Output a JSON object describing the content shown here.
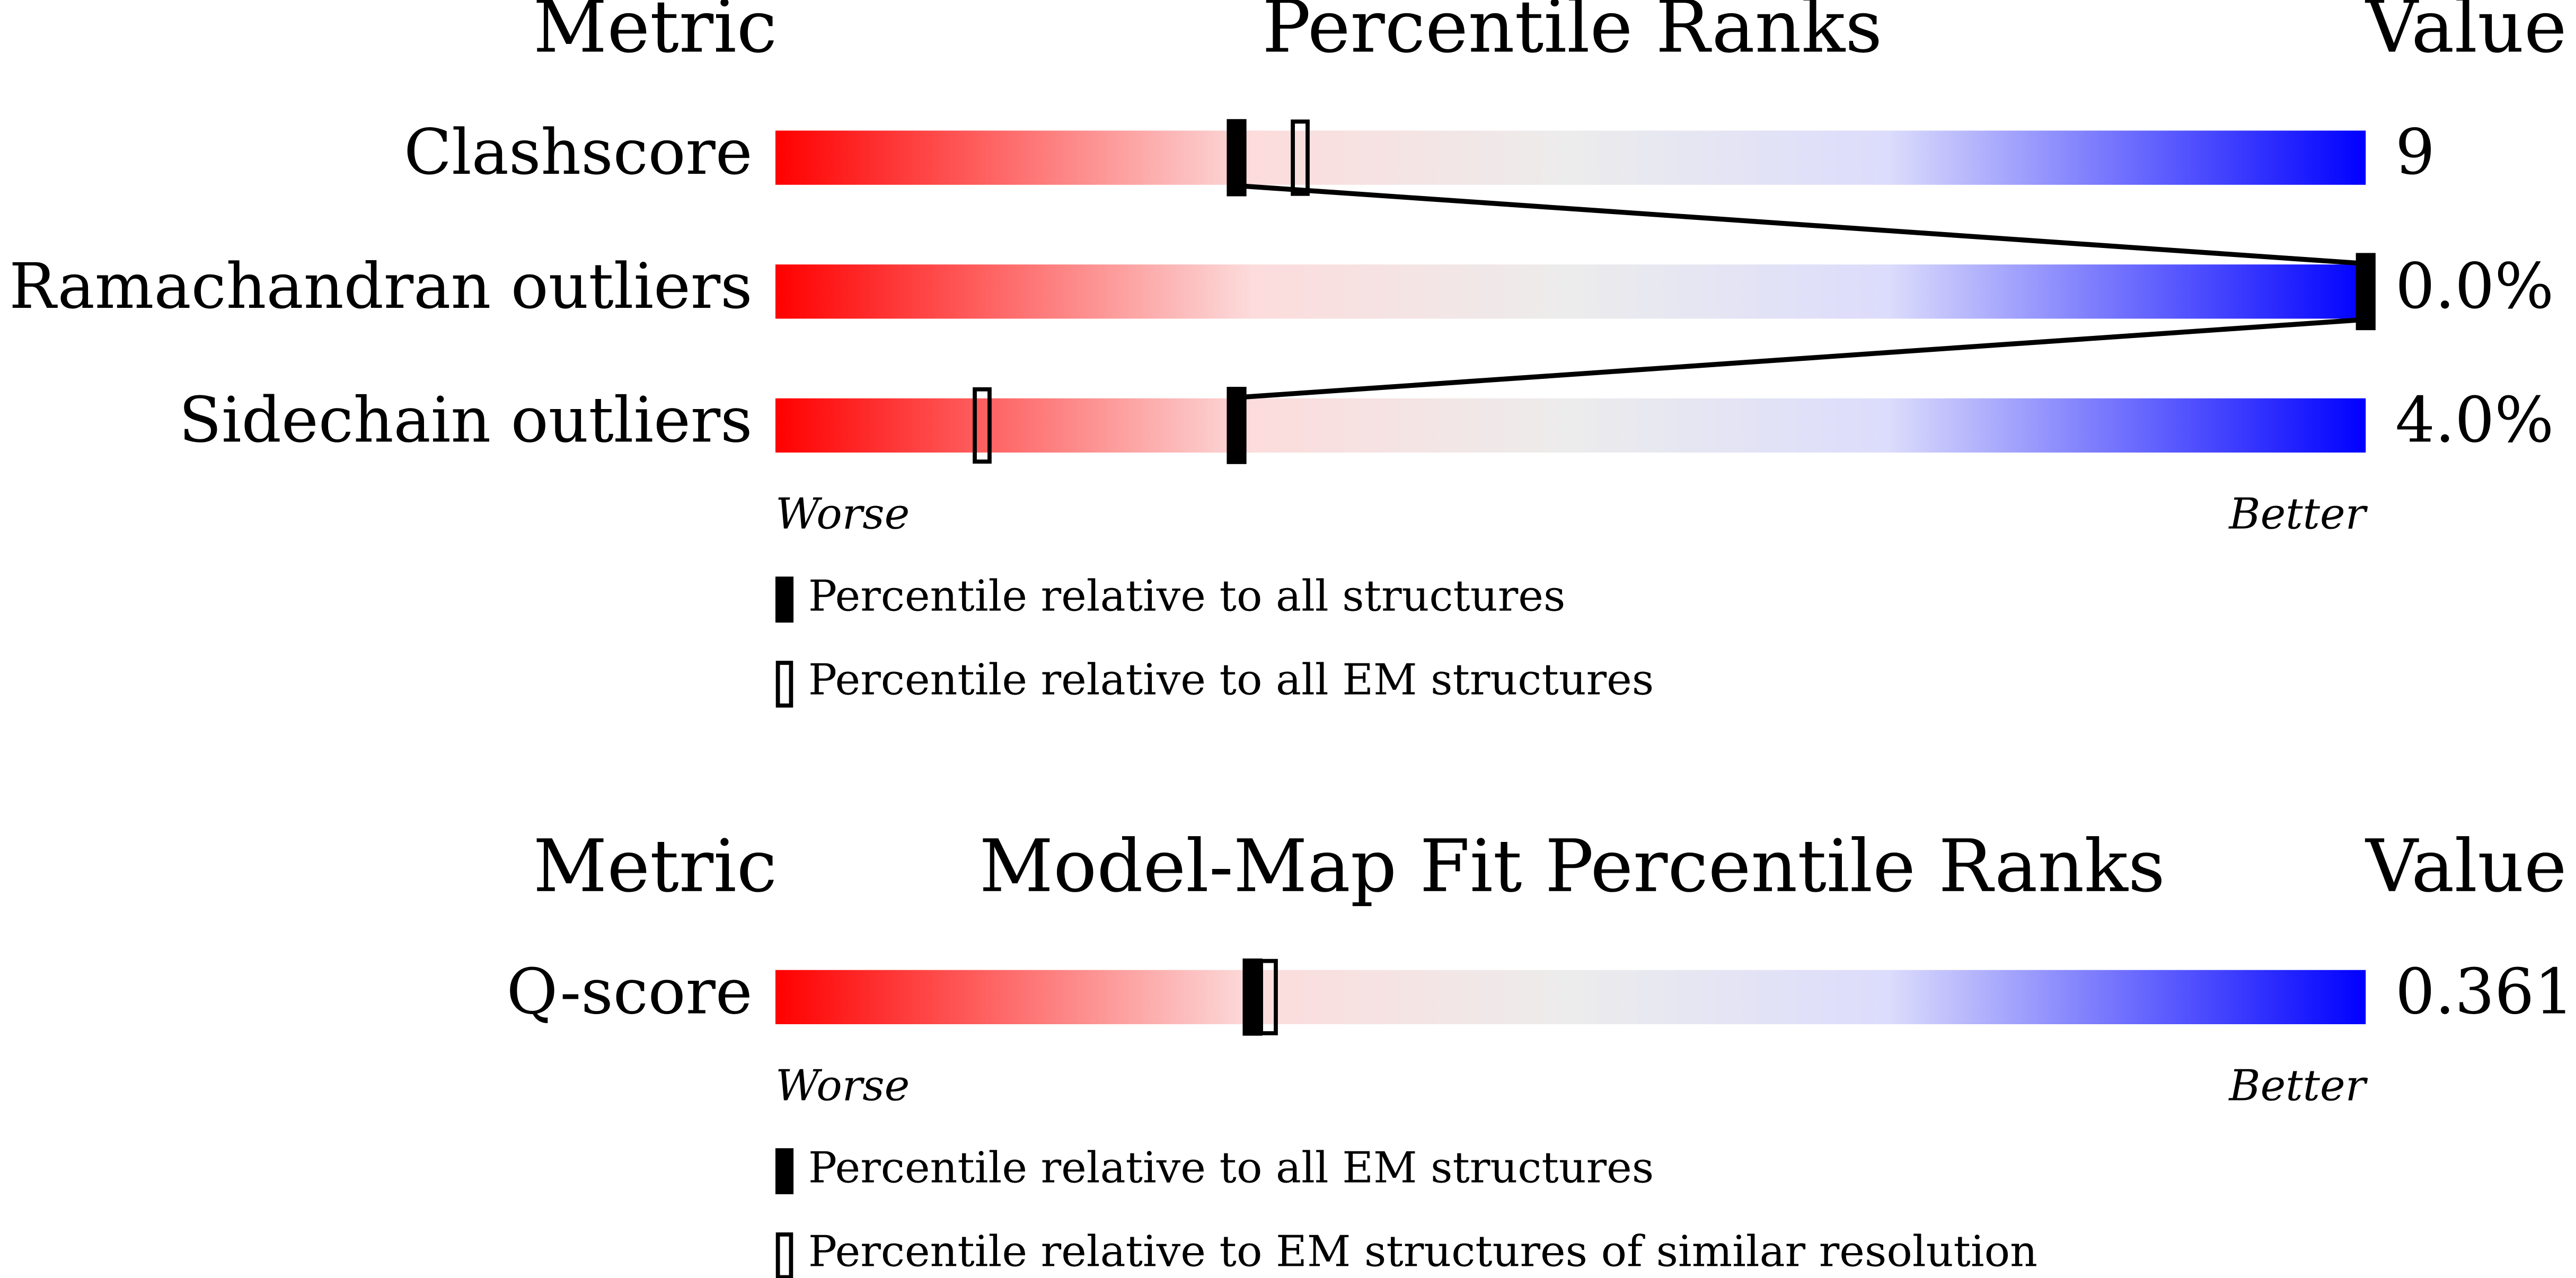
{
  "panels": [
    {
      "headers": {
        "metric": "Metric",
        "title": "Percentile Ranks",
        "value": "Value"
      },
      "rows": [
        {
          "metric": "Clashscore",
          "value": "9",
          "percentile": 29,
          "percentile_alt": 33
        },
        {
          "metric": "Ramachandran outliers",
          "value": "0.0%",
          "percentile": 100
        },
        {
          "metric": "Sidechain outliers",
          "value": "4.0%",
          "percentile": 29,
          "percentile_alt": 13
        }
      ],
      "worse": "Worse",
      "better": "Better",
      "legend": [
        "Percentile relative to all structures",
        "Percentile relative to all EM structures"
      ]
    },
    {
      "headers": {
        "metric": "Metric",
        "title": "Model-Map Fit Percentile Ranks",
        "value": "Value"
      },
      "rows": [
        {
          "metric": "Q-score",
          "value": "0.361",
          "percentile": 30,
          "percentile_alt": 31
        }
      ],
      "worse": "Worse",
      "better": "Better",
      "legend": [
        "Percentile relative to all EM structures",
        "Percentile relative to EM structures of similar resolution"
      ]
    }
  ]
}
